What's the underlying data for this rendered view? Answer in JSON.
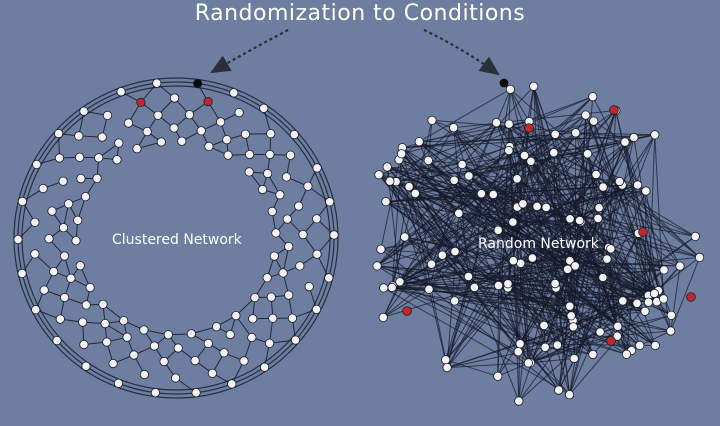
{
  "title": "Randomization to Conditions",
  "networks": [
    {
      "label": "Clustered Network",
      "node_count": 130,
      "seeded_nodes": 7
    },
    {
      "label": "Random Network",
      "node_count": 130,
      "seeded_nodes": 7
    }
  ],
  "colors": {
    "background": "#6d7ea0",
    "node": "#f3f3f5",
    "seed_node": "#c0282a",
    "start_node": "#0b0b0b",
    "edge": "#161a2a",
    "arrow": "#2a2f3a",
    "title": "#ffffff"
  }
}
